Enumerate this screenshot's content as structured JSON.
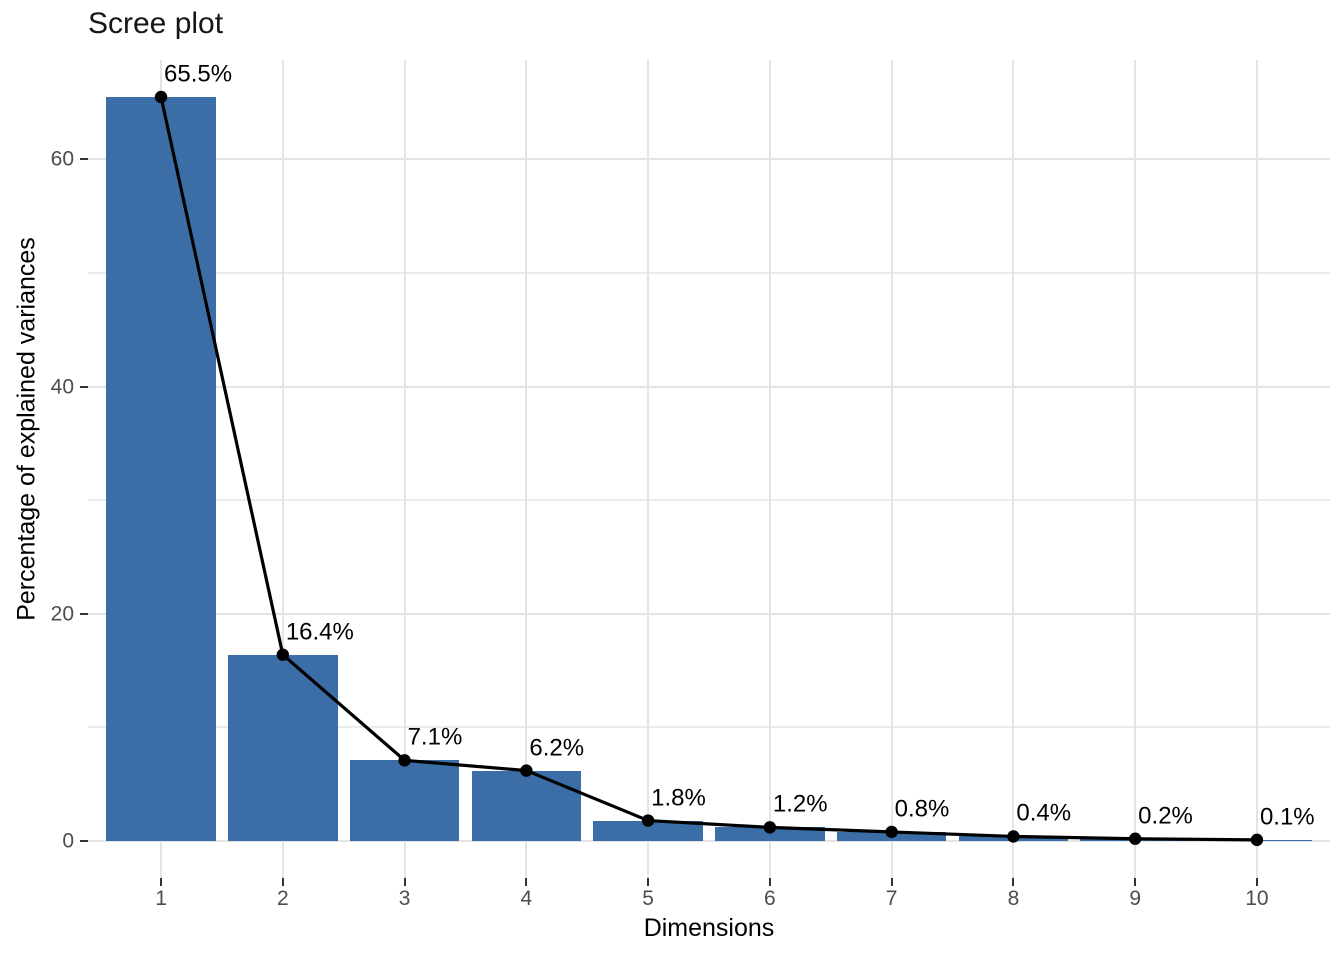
{
  "chart_data": {
    "type": "bar",
    "overlay": "line-with-points",
    "title": "Scree plot",
    "xlabel": "Dimensions",
    "ylabel": "Percentage of explained variances",
    "categories": [
      "1",
      "2",
      "3",
      "4",
      "5",
      "6",
      "7",
      "8",
      "9",
      "10"
    ],
    "values": [
      65.5,
      16.4,
      7.1,
      6.2,
      1.8,
      1.2,
      0.8,
      0.4,
      0.2,
      0.1
    ],
    "point_labels": [
      "65.5%",
      "16.4%",
      "7.1%",
      "6.2%",
      "1.8%",
      "1.2%",
      "0.8%",
      "0.4%",
      "0.2%",
      "0.1%"
    ],
    "y_major_ticks": [
      0,
      20,
      40,
      60
    ],
    "y_minor_gridlines": [
      10,
      30,
      50
    ],
    "ylim": [
      -3.3,
      68.8
    ],
    "grid": true,
    "legend": "none",
    "colors": {
      "bar_fill": "#3B6EA7",
      "line": "#000000",
      "point": "#000000",
      "grid_major": "#E4E4E4",
      "grid_minor": "#EBEBEB",
      "tick_label": "#4D4D4D",
      "tick_mark": "#333333",
      "text": "#000000",
      "background": "#FFFFFF"
    }
  }
}
